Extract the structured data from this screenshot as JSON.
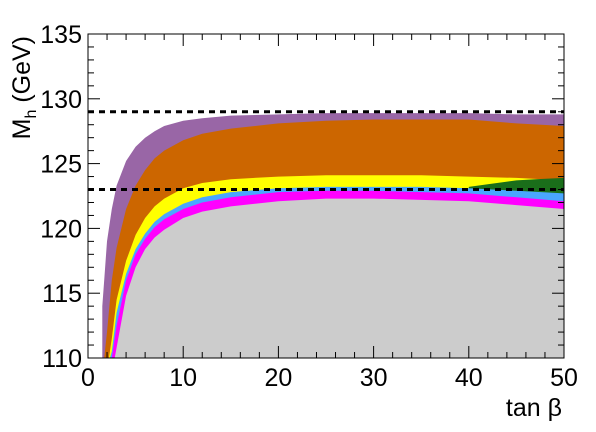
{
  "chart_data": {
    "type": "area",
    "title": "",
    "xlabel": "tan β",
    "ylabel_main": "M",
    "ylabel_sub": "h",
    "ylabel_unit": " (GeV)",
    "xlim": [
      0,
      50
    ],
    "ylim": [
      110,
      135
    ],
    "x_ticks": [
      0,
      10,
      20,
      30,
      40,
      50
    ],
    "y_ticks": [
      110,
      115,
      120,
      125,
      130,
      135
    ],
    "grid": false,
    "legend": "none",
    "reference_lines": [
      {
        "y": 129,
        "style": "dashed",
        "color": "#000000"
      },
      {
        "y": 123,
        "style": "dashed",
        "color": "#000000"
      }
    ],
    "series": [
      {
        "color": "#9966a6",
        "x": [
          1.5,
          1.7,
          2,
          2.5,
          3,
          4,
          5,
          6,
          7,
          8,
          10,
          12,
          15,
          20,
          25,
          30,
          35,
          40,
          45,
          50
        ],
        "upper": [
          114,
          116,
          119,
          121.5,
          123.3,
          125.2,
          126.3,
          127,
          127.5,
          127.9,
          128.3,
          128.5,
          128.7,
          128.8,
          128.9,
          128.9,
          128.9,
          128.9,
          128.8,
          128.8
        ],
        "lower": [
          110,
          110,
          110,
          110,
          110,
          110,
          110,
          110,
          110,
          110,
          110,
          110,
          110,
          110,
          110,
          110,
          110,
          110,
          110,
          110
        ]
      },
      {
        "color": "#cc6600",
        "x": [
          1.7,
          2,
          2.5,
          3,
          4,
          5,
          6,
          7,
          8,
          10,
          12,
          15,
          20,
          25,
          30,
          35,
          40,
          45,
          50
        ],
        "upper": [
          110,
          112,
          116,
          118.5,
          121.5,
          123.3,
          124.5,
          125.4,
          126,
          126.8,
          127.3,
          127.7,
          128.1,
          128.3,
          128.4,
          128.4,
          128.4,
          128.1,
          127.9
        ],
        "lower": [
          110,
          110,
          110,
          110,
          110,
          110,
          110,
          110,
          110,
          110,
          110,
          110,
          110,
          110,
          110,
          110,
          110,
          110,
          110
        ]
      },
      {
        "color": "#ffff00",
        "x": [
          2.2,
          2.5,
          3,
          4,
          5,
          6,
          7,
          8,
          10,
          12,
          15,
          20,
          25,
          30,
          35,
          40,
          45,
          50
        ],
        "upper": [
          110,
          111.5,
          114.5,
          117.5,
          119.5,
          120.8,
          121.7,
          122.3,
          123.1,
          123.5,
          123.8,
          124,
          124.1,
          124.1,
          124.1,
          124,
          123.9,
          123.7
        ],
        "lower": [
          110,
          110,
          110,
          110,
          110,
          110,
          110,
          110,
          110,
          110,
          110,
          110,
          110,
          110,
          110,
          110,
          110,
          110
        ]
      },
      {
        "color": "#1a6e1a",
        "x": [
          40,
          42,
          45,
          47,
          50
        ],
        "upper": [
          123.2,
          123.4,
          123.7,
          123.8,
          123.9
        ],
        "lower": [
          122.6,
          122.5,
          122.4,
          122.2,
          122
        ]
      },
      {
        "color": "#4aa6ff",
        "x": [
          2.3,
          2.5,
          3,
          4,
          5,
          6,
          7,
          8,
          10,
          12,
          15,
          20,
          25,
          30,
          35,
          40,
          45,
          50
        ],
        "upper": [
          110,
          110.5,
          113.5,
          116.5,
          118.4,
          119.6,
          120.5,
          121.1,
          121.9,
          122.4,
          122.8,
          123.1,
          123.2,
          123.2,
          123.2,
          123.1,
          122.9,
          122.7
        ],
        "lower": [
          110,
          110,
          110,
          110,
          110,
          110,
          110,
          110,
          110,
          110,
          110,
          110,
          110,
          110,
          110,
          110,
          110,
          110
        ]
      },
      {
        "color": "#ff00ff",
        "x": [
          2.5,
          3,
          4,
          5,
          6,
          7,
          8,
          10,
          12,
          15,
          20,
          25,
          30,
          35,
          40,
          45,
          50
        ],
        "upper": [
          110,
          112.5,
          116,
          118,
          119.2,
          120.1,
          120.7,
          121.5,
          122,
          122.4,
          122.8,
          122.9,
          122.9,
          122.8,
          122.7,
          122.4,
          122.1
        ],
        "lower": [
          110,
          110,
          110,
          110,
          110,
          110,
          110,
          110,
          110,
          110,
          110,
          110,
          110,
          110,
          110,
          110,
          110
        ]
      },
      {
        "color": "#cccccc",
        "x": [
          2.8,
          3,
          4,
          5,
          6,
          7,
          8,
          10,
          12,
          15,
          20,
          25,
          30,
          35,
          40,
          45,
          50
        ],
        "upper": [
          110,
          110.8,
          114.8,
          117,
          118.4,
          119.3,
          119.9,
          120.8,
          121.3,
          121.7,
          122.1,
          122.3,
          122.3,
          122.2,
          122.1,
          121.8,
          121.5
        ],
        "lower": [
          110,
          110,
          110,
          110,
          110,
          110,
          110,
          110,
          110,
          110,
          110,
          110,
          110,
          110,
          110,
          110,
          110
        ]
      }
    ]
  }
}
